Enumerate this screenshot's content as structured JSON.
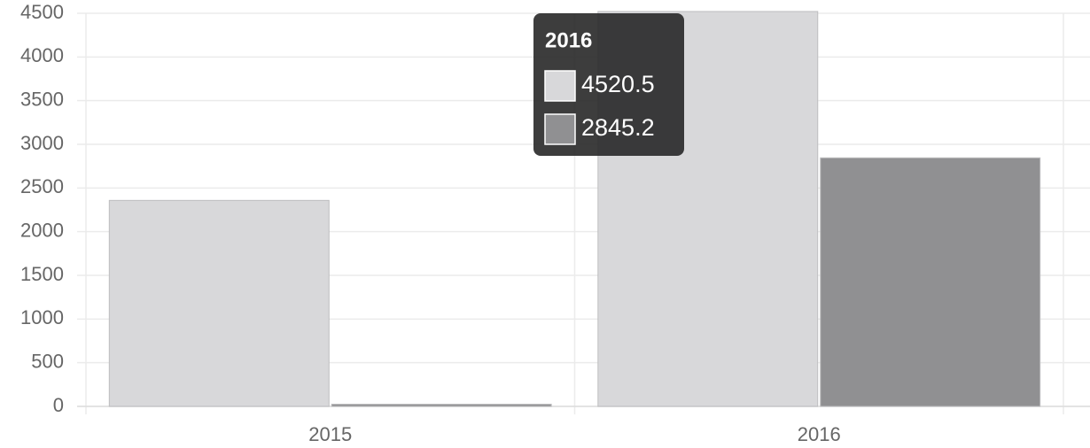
{
  "chart_data": {
    "type": "bar",
    "categories": [
      "2015",
      "2016"
    ],
    "series": [
      {
        "color": "#d8d8da",
        "values": [
          2358,
          4520.5
        ]
      },
      {
        "color": "#909092",
        "values": [
          25,
          2845.2
        ]
      }
    ],
    "ylim": [
      0,
      4500
    ],
    "yticks": [
      0,
      500,
      1000,
      1500,
      2000,
      2500,
      3000,
      3500,
      4000,
      4500
    ],
    "grid": true
  }
}
